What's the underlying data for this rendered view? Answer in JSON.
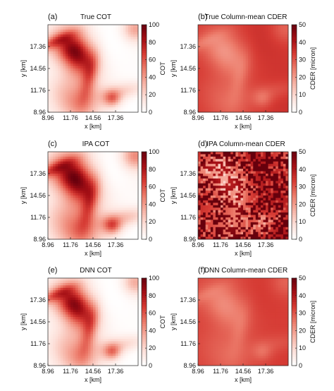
{
  "chart_data": [
    {
      "type": "heatmap",
      "panel_label": "(a)",
      "title": "True COT",
      "xlabel": "x [km]",
      "ylabel": "y [km]",
      "x_ticks": [
        "8.96",
        "11.76",
        "14.56",
        "17.36"
      ],
      "y_ticks": [
        "8.96",
        "11.76",
        "14.56",
        "17.36"
      ],
      "colorbar_label": "COT",
      "colorbar_ticks": [
        "0",
        "20",
        "40",
        "60",
        "80",
        "100"
      ],
      "zlim": [
        0,
        100
      ],
      "pattern_seed": 11
    },
    {
      "type": "heatmap",
      "panel_label": "(b)",
      "title": "True Column-mean CDER",
      "xlabel": "x [km]",
      "ylabel": "y [km]",
      "x_ticks": [
        "8.96",
        "11.76",
        "14.56",
        "17.36"
      ],
      "y_ticks": [
        "8.96",
        "11.76",
        "14.56",
        "17.36"
      ],
      "colorbar_label": "CDER [micron]",
      "colorbar_ticks": [
        "0",
        "10",
        "20",
        "30",
        "40",
        "50"
      ],
      "zlim": [
        0,
        50
      ],
      "pattern_seed": 11
    },
    {
      "type": "heatmap",
      "panel_label": "(c)",
      "title": "IPA COT",
      "xlabel": "x [km]",
      "ylabel": "y [km]",
      "x_ticks": [
        "8.96",
        "11.76",
        "14.56",
        "17.36"
      ],
      "y_ticks": [
        "8.96",
        "11.76",
        "14.56",
        "17.36"
      ],
      "colorbar_label": "COT",
      "colorbar_ticks": [
        "0",
        "20",
        "40",
        "60",
        "80",
        "100"
      ],
      "zlim": [
        0,
        100
      ],
      "pattern_seed": 11
    },
    {
      "type": "heatmap",
      "panel_label": "(d)",
      "title": "IPA Column-mean CDER",
      "xlabel": "x [km]",
      "ylabel": "y [km]",
      "x_ticks": [
        "8.96",
        "11.76",
        "14.56",
        "17.36"
      ],
      "y_ticks": [
        "8.96",
        "11.76",
        "14.56",
        "17.36"
      ],
      "colorbar_label": "CDER [micron]",
      "colorbar_ticks": [
        "0",
        "10",
        "20",
        "30",
        "40",
        "50"
      ],
      "zlim": [
        0,
        50
      ],
      "pattern_seed": 29
    },
    {
      "type": "heatmap",
      "panel_label": "(e)",
      "title": "DNN COT",
      "xlabel": "x [km]",
      "ylabel": "y [km]",
      "x_ticks": [
        "8.96",
        "11.76",
        "14.56",
        "17.36"
      ],
      "y_ticks": [
        "8.96",
        "11.76",
        "14.56",
        "17.36"
      ],
      "colorbar_label": "COT",
      "colorbar_ticks": [
        "0",
        "20",
        "40",
        "60",
        "80",
        "100"
      ],
      "zlim": [
        0,
        100
      ],
      "pattern_seed": 11
    },
    {
      "type": "heatmap",
      "panel_label": "(f)",
      "title": "DNN Column-mean CDER",
      "xlabel": "x [km]",
      "ylabel": "y [km]",
      "x_ticks": [
        "8.96",
        "11.76",
        "14.56",
        "17.36"
      ],
      "y_ticks": [
        "8.96",
        "11.76",
        "14.56",
        "17.36"
      ],
      "colorbar_label": "CDER [micron]",
      "colorbar_ticks": [
        "0",
        "10",
        "20",
        "30",
        "40",
        "50"
      ],
      "zlim": [
        0,
        50
      ],
      "pattern_seed": 11
    }
  ],
  "colormap": [
    "#ffffff",
    "#fde0d9",
    "#f6b1a3",
    "#ec7a69",
    "#d63b34",
    "#a50f15",
    "#67000d"
  ]
}
